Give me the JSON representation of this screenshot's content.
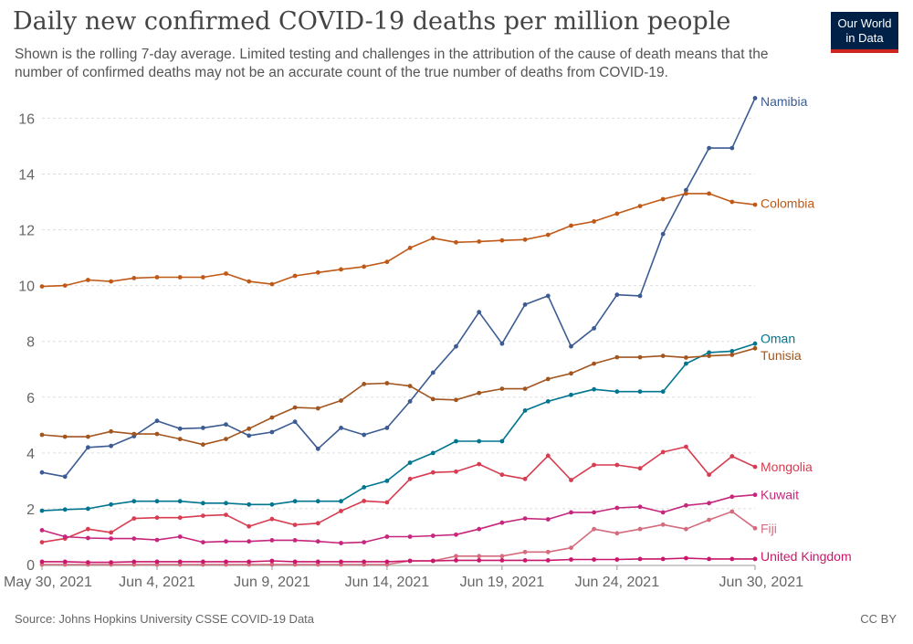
{
  "header": {
    "title": "Daily new confirmed COVID-19 deaths per million people",
    "subtitle": "Shown is the rolling 7-day average. Limited testing and challenges in the attribution of the cause of death means that the number of confirmed deaths may not be an accurate count of the true number of deaths from COVID-19.",
    "logo_line1": "Our World",
    "logo_line2": "in Data"
  },
  "footer": {
    "source": "Source: Johns Hopkins University CSSE COVID-19 Data",
    "license": "CC BY"
  },
  "colors": {
    "logo_bg": "#002147",
    "logo_accent": "#ce261e"
  },
  "chart_data": {
    "type": "line",
    "title": "Daily new confirmed COVID-19 deaths per million people",
    "x_start": "2021-05-30",
    "x_end": "2021-06-30",
    "x_ticks": [
      "May 30, 2021",
      "Jun 4, 2021",
      "Jun 9, 2021",
      "Jun 14, 2021",
      "Jun 19, 2021",
      "Jun 24, 2021",
      "Jun 30, 2021"
    ],
    "x_tick_dates": [
      "2021-05-30",
      "2021-06-04",
      "2021-06-09",
      "2021-06-14",
      "2021-06-19",
      "2021-06-24",
      "2021-06-30"
    ],
    "y_ticks": [
      0,
      2,
      4,
      6,
      8,
      10,
      12,
      14,
      16
    ],
    "ylim": [
      0,
      16.8
    ],
    "grid": "horizontal dashed",
    "legend": "labels at line ends",
    "series": [
      {
        "name": "Namibia",
        "color": "#3b5b92",
        "label_y": 16.6,
        "values": [
          3.3,
          3.15,
          4.2,
          4.25,
          4.6,
          5.15,
          4.87,
          4.9,
          5.02,
          4.62,
          4.75,
          5.12,
          4.15,
          4.9,
          4.65,
          4.9,
          5.85,
          6.88,
          7.82,
          9.05,
          7.92,
          9.32,
          9.63,
          7.82,
          8.47,
          9.67,
          9.63,
          11.85,
          13.42,
          14.93,
          14.93,
          16.72
        ]
      },
      {
        "name": "Colombia",
        "color": "#c05917",
        "label_y": 12.95,
        "values": [
          9.97,
          10.0,
          10.2,
          10.15,
          10.27,
          10.3,
          10.3,
          10.3,
          10.43,
          10.15,
          10.05,
          10.35,
          10.47,
          10.58,
          10.68,
          10.85,
          11.35,
          11.7,
          11.55,
          11.58,
          11.62,
          11.65,
          11.82,
          12.15,
          12.3,
          12.58,
          12.85,
          13.1,
          13.3,
          13.3,
          13.0,
          12.9
        ]
      },
      {
        "name": "Oman",
        "color": "#00758f",
        "label_y": 8.1,
        "values": [
          1.93,
          1.97,
          2.0,
          2.15,
          2.27,
          2.27,
          2.27,
          2.2,
          2.2,
          2.15,
          2.15,
          2.27,
          2.27,
          2.27,
          2.77,
          3.0,
          3.65,
          4.0,
          4.42,
          4.42,
          4.42,
          5.52,
          5.85,
          6.08,
          6.28,
          6.2,
          6.2,
          6.2,
          7.2,
          7.6,
          7.65,
          7.92
        ]
      },
      {
        "name": "Tunisia",
        "color": "#a2551e",
        "label_y": 7.5,
        "values": [
          4.65,
          4.58,
          4.58,
          4.77,
          4.68,
          4.68,
          4.5,
          4.3,
          4.5,
          4.87,
          5.27,
          5.63,
          5.6,
          5.88,
          6.47,
          6.5,
          6.4,
          5.93,
          5.9,
          6.15,
          6.3,
          6.3,
          6.65,
          6.85,
          7.2,
          7.43,
          7.43,
          7.48,
          7.42,
          7.48,
          7.52,
          7.75
        ]
      },
      {
        "name": "Mongolia",
        "color": "#d73c50",
        "label_y": 3.5,
        "values": [
          0.8,
          0.93,
          1.27,
          1.15,
          1.65,
          1.68,
          1.68,
          1.75,
          1.78,
          1.37,
          1.63,
          1.42,
          1.48,
          1.92,
          2.28,
          2.23,
          3.07,
          3.3,
          3.33,
          3.6,
          3.22,
          3.07,
          3.9,
          3.03,
          3.57,
          3.57,
          3.45,
          4.03,
          4.22,
          3.22,
          3.88,
          3.5
        ]
      },
      {
        "name": "Kuwait",
        "color": "#c6277c",
        "label_y": 2.5,
        "values": [
          1.23,
          1.0,
          0.95,
          0.93,
          0.93,
          0.88,
          1.0,
          0.8,
          0.83,
          0.83,
          0.87,
          0.87,
          0.83,
          0.77,
          0.8,
          1.0,
          1.0,
          1.03,
          1.07,
          1.27,
          1.5,
          1.65,
          1.62,
          1.87,
          1.87,
          2.03,
          2.07,
          1.87,
          2.12,
          2.2,
          2.43,
          2.5
        ]
      },
      {
        "name": "Fiji",
        "color": "#d46c7e",
        "label_y": 1.3,
        "values": [
          0.0,
          0.0,
          0.0,
          0.0,
          0.0,
          0.0,
          0.0,
          0.0,
          0.0,
          0.0,
          0.0,
          0.0,
          0.0,
          0.0,
          0.0,
          0.0,
          0.13,
          0.13,
          0.3,
          0.3,
          0.3,
          0.45,
          0.45,
          0.6,
          1.27,
          1.12,
          1.27,
          1.43,
          1.27,
          1.6,
          1.9,
          1.3
        ]
      },
      {
        "name": "United Kingdom",
        "color": "#c9176b",
        "label_y": 0.3,
        "values": [
          0.1,
          0.1,
          0.08,
          0.08,
          0.1,
          0.1,
          0.1,
          0.1,
          0.1,
          0.1,
          0.13,
          0.1,
          0.1,
          0.1,
          0.1,
          0.1,
          0.13,
          0.13,
          0.15,
          0.15,
          0.15,
          0.15,
          0.15,
          0.18,
          0.18,
          0.18,
          0.2,
          0.2,
          0.23,
          0.2,
          0.2,
          0.2
        ]
      }
    ]
  }
}
